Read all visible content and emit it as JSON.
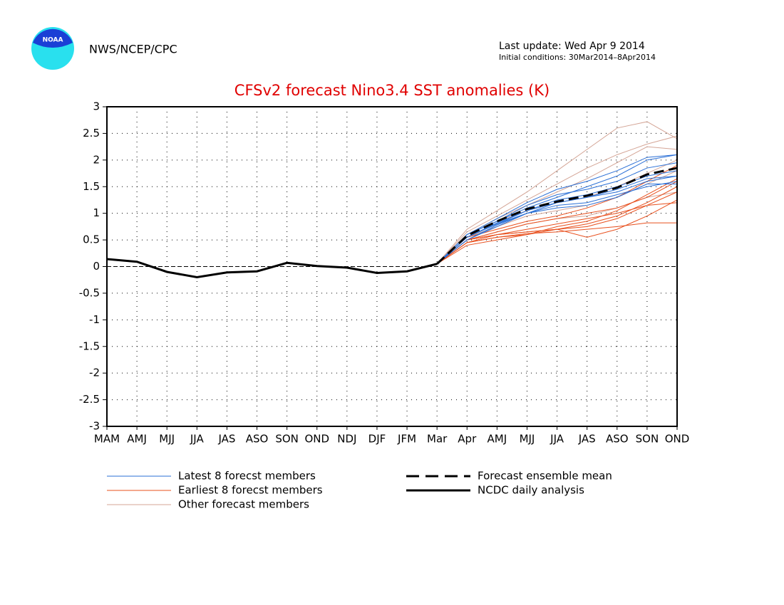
{
  "header": {
    "agency": "NWS/NCEP/CPC",
    "logo_text": "NOAA",
    "last_update": "Last update: Wed Apr 9 2014",
    "initial_conditions": "Initial conditions: 30Mar2014–8Apr2014"
  },
  "chart_data": {
    "type": "line",
    "title": "CFSv2 forecast Nino3.4 SST anomalies (K)",
    "categories": [
      "MAM",
      "AMJ",
      "MJJ",
      "JJA",
      "JAS",
      "ASO",
      "SON",
      "OND",
      "NDJ",
      "DJF",
      "JFM",
      "Mar",
      "Apr",
      "AMJ",
      "MJJ",
      "JJA",
      "JAS",
      "ASO",
      "SON",
      "OND"
    ],
    "ylim": [
      -3,
      3
    ],
    "yticks": [
      -3,
      -2.5,
      -2,
      -1.5,
      -1,
      -0.5,
      0,
      0.5,
      1,
      1.5,
      2,
      2.5,
      3
    ],
    "grid": true,
    "member_groups": [
      {
        "name": "Latest 8 forecst members",
        "color": "#2a6fd6",
        "members": [
          [
            null,
            null,
            null,
            null,
            null,
            null,
            null,
            null,
            null,
            null,
            null,
            0.05,
            0.6,
            0.85,
            1.1,
            1.3,
            1.5,
            1.7,
            2.0,
            2.1
          ],
          [
            null,
            null,
            null,
            null,
            null,
            null,
            null,
            null,
            null,
            null,
            null,
            0.05,
            0.55,
            0.8,
            1.05,
            1.2,
            1.3,
            1.4,
            1.6,
            1.7
          ],
          [
            null,
            null,
            null,
            null,
            null,
            null,
            null,
            null,
            null,
            null,
            null,
            0.05,
            0.5,
            0.75,
            1.0,
            1.15,
            1.2,
            1.35,
            1.5,
            1.6
          ],
          [
            null,
            null,
            null,
            null,
            null,
            null,
            null,
            null,
            null,
            null,
            null,
            0.05,
            0.6,
            0.9,
            1.2,
            1.45,
            1.6,
            1.8,
            2.05,
            2.1
          ],
          [
            null,
            null,
            null,
            null,
            null,
            null,
            null,
            null,
            null,
            null,
            null,
            0.05,
            0.55,
            0.8,
            1.0,
            1.1,
            1.15,
            1.3,
            1.55,
            1.55
          ],
          [
            null,
            null,
            null,
            null,
            null,
            null,
            null,
            null,
            null,
            null,
            null,
            0.05,
            0.6,
            0.85,
            1.15,
            1.35,
            1.45,
            1.6,
            1.85,
            1.95
          ],
          [
            null,
            null,
            null,
            null,
            null,
            null,
            null,
            null,
            null,
            null,
            null,
            0.05,
            0.55,
            0.82,
            1.05,
            1.25,
            1.35,
            1.5,
            1.7,
            1.8
          ],
          [
            null,
            null,
            null,
            null,
            null,
            null,
            null,
            null,
            null,
            null,
            null,
            0.05,
            0.5,
            0.78,
            1.0,
            1.2,
            1.3,
            1.45,
            1.65,
            1.7
          ]
        ]
      },
      {
        "name": "Earliest 8 forecst members",
        "color": "#e8501e",
        "members": [
          [
            null,
            null,
            null,
            null,
            null,
            null,
            null,
            null,
            null,
            null,
            null,
            0.05,
            0.45,
            0.55,
            0.62,
            0.65,
            0.7,
            0.75,
            0.82,
            0.82
          ],
          [
            null,
            null,
            null,
            null,
            null,
            null,
            null,
            null,
            null,
            null,
            null,
            0.05,
            0.5,
            0.6,
            0.65,
            0.7,
            0.55,
            0.7,
            0.95,
            1.25
          ],
          [
            null,
            null,
            null,
            null,
            null,
            null,
            null,
            null,
            null,
            null,
            null,
            0.05,
            0.4,
            0.5,
            0.6,
            0.7,
            0.8,
            0.95,
            1.2,
            1.5
          ],
          [
            null,
            null,
            null,
            null,
            null,
            null,
            null,
            null,
            null,
            null,
            null,
            0.05,
            0.5,
            0.65,
            0.8,
            0.9,
            1.0,
            1.1,
            1.3,
            1.6
          ],
          [
            null,
            null,
            null,
            null,
            null,
            null,
            null,
            null,
            null,
            null,
            null,
            0.05,
            0.45,
            0.6,
            0.7,
            0.8,
            0.9,
            1.0,
            1.15,
            1.2
          ],
          [
            null,
            null,
            null,
            null,
            null,
            null,
            null,
            null,
            null,
            null,
            null,
            0.05,
            0.55,
            0.7,
            0.85,
            0.95,
            1.1,
            1.3,
            1.6,
            1.9
          ],
          [
            null,
            null,
            null,
            null,
            null,
            null,
            null,
            null,
            null,
            null,
            null,
            0.05,
            0.5,
            0.6,
            0.65,
            0.7,
            0.75,
            0.9,
            1.15,
            1.4
          ],
          [
            null,
            null,
            null,
            null,
            null,
            null,
            null,
            null,
            null,
            null,
            null,
            0.05,
            0.45,
            0.55,
            0.6,
            0.75,
            0.85,
            1.05,
            1.35,
            1.65
          ]
        ]
      },
      {
        "name": "Other forecast members",
        "color": "#d4a596",
        "members": [
          [
            null,
            null,
            null,
            null,
            null,
            null,
            null,
            null,
            null,
            null,
            null,
            0.05,
            0.7,
            1.05,
            1.4,
            1.8,
            2.2,
            2.6,
            2.72,
            2.4
          ],
          [
            null,
            null,
            null,
            null,
            null,
            null,
            null,
            null,
            null,
            null,
            null,
            0.05,
            0.65,
            0.95,
            1.25,
            1.55,
            1.85,
            2.1,
            2.3,
            2.45
          ],
          [
            null,
            null,
            null,
            null,
            null,
            null,
            null,
            null,
            null,
            null,
            null,
            0.05,
            0.55,
            0.75,
            0.95,
            1.05,
            1.15,
            1.3,
            1.55,
            1.8
          ],
          [
            null,
            null,
            null,
            null,
            null,
            null,
            null,
            null,
            null,
            null,
            null,
            0.05,
            0.6,
            0.9,
            1.15,
            1.4,
            1.65,
            1.95,
            2.25,
            2.2
          ],
          [
            null,
            null,
            null,
            null,
            null,
            null,
            null,
            null,
            null,
            null,
            null,
            0.05,
            0.5,
            0.65,
            0.8,
            0.9,
            0.95,
            1.1,
            1.3,
            1.4
          ],
          [
            null,
            null,
            null,
            null,
            null,
            null,
            null,
            null,
            null,
            null,
            null,
            0.05,
            0.6,
            0.85,
            1.05,
            1.2,
            1.3,
            1.5,
            1.75,
            2.0
          ]
        ]
      }
    ],
    "series": [
      {
        "name": "Forecast ensemble mean",
        "color": "#000000",
        "dashed": true,
        "values": [
          null,
          null,
          null,
          null,
          null,
          null,
          null,
          null,
          null,
          null,
          null,
          0.05,
          0.58,
          0.85,
          1.08,
          1.22,
          1.33,
          1.48,
          1.73,
          1.85
        ]
      },
      {
        "name": "NCDC daily analysis",
        "color": "#000000",
        "dashed": false,
        "values": [
          0.14,
          0.09,
          -0.1,
          -0.2,
          -0.11,
          -0.09,
          0.07,
          0.01,
          -0.02,
          -0.12,
          -0.09,
          0.05,
          null,
          null,
          null,
          null,
          null,
          null,
          null,
          null
        ]
      }
    ]
  }
}
